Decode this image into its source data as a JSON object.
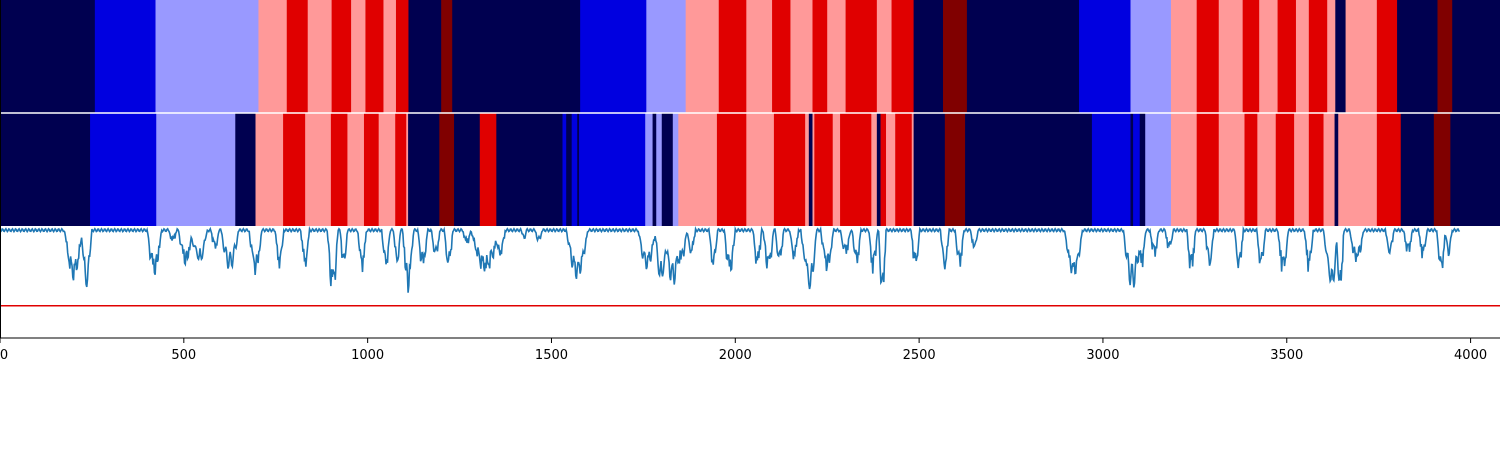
{
  "chart_data": {
    "type": "heatmap",
    "title": "",
    "xlabel": "",
    "ylabel": "",
    "xlim": [
      0,
      4080
    ],
    "xticks": [
      0,
      500,
      1000,
      1500,
      2000,
      2500,
      3000,
      3500,
      4000
    ],
    "xtick_labels": [
      "0",
      "500",
      "1000",
      "1500",
      "2000",
      "2500",
      "3000",
      "3500",
      "4000"
    ],
    "grid": false,
    "legend": "none",
    "palette": [
      "#000050",
      "#0000e0",
      "#9999ff",
      "#ff9999",
      "#e00000",
      "#800000"
    ],
    "segment_rows": [
      {
        "segments": [
          [
            0,
            258,
            0
          ],
          [
            258,
            423,
            1
          ],
          [
            423,
            703,
            2
          ],
          [
            703,
            780,
            3
          ],
          [
            780,
            837,
            4
          ],
          [
            837,
            902,
            3
          ],
          [
            902,
            955,
            4
          ],
          [
            955,
            994,
            3
          ],
          [
            994,
            1043,
            4
          ],
          [
            1043,
            1077,
            3
          ],
          [
            1077,
            1111,
            4
          ],
          [
            1111,
            1200,
            0
          ],
          [
            1200,
            1230,
            5
          ],
          [
            1230,
            1578,
            0
          ],
          [
            1578,
            1758,
            1
          ],
          [
            1758,
            1865,
            2
          ],
          [
            1865,
            1955,
            3
          ],
          [
            1955,
            2030,
            4
          ],
          [
            2030,
            2100,
            3
          ],
          [
            2100,
            2150,
            4
          ],
          [
            2150,
            2210,
            3
          ],
          [
            2210,
            2250,
            4
          ],
          [
            2250,
            2300,
            3
          ],
          [
            2300,
            2385,
            4
          ],
          [
            2385,
            2425,
            3
          ],
          [
            2425,
            2485,
            4
          ],
          [
            2485,
            2565,
            0
          ],
          [
            2565,
            2630,
            5
          ],
          [
            2630,
            2935,
            0
          ],
          [
            2935,
            3075,
            1
          ],
          [
            3075,
            3185,
            2
          ],
          [
            3185,
            3255,
            3
          ],
          [
            3255,
            3315,
            4
          ],
          [
            3315,
            3380,
            3
          ],
          [
            3380,
            3425,
            4
          ],
          [
            3425,
            3475,
            3
          ],
          [
            3475,
            3525,
            4
          ],
          [
            3525,
            3560,
            3
          ],
          [
            3560,
            3610,
            4
          ],
          [
            3610,
            3632,
            3
          ],
          [
            3632,
            3660,
            0
          ],
          [
            3660,
            3745,
            3
          ],
          [
            3745,
            3800,
            4
          ],
          [
            3800,
            3910,
            0
          ],
          [
            3910,
            3950,
            5
          ],
          [
            3950,
            4080,
            0
          ]
        ]
      },
      {
        "segments": [
          [
            0,
            245,
            0
          ],
          [
            245,
            425,
            1
          ],
          [
            425,
            640,
            2
          ],
          [
            640,
            695,
            0
          ],
          [
            695,
            770,
            3
          ],
          [
            770,
            830,
            4
          ],
          [
            830,
            900,
            3
          ],
          [
            900,
            945,
            4
          ],
          [
            945,
            990,
            3
          ],
          [
            990,
            1030,
            4
          ],
          [
            1030,
            1075,
            3
          ],
          [
            1075,
            1105,
            4
          ],
          [
            1105,
            1110,
            3
          ],
          [
            1110,
            1195,
            0
          ],
          [
            1195,
            1235,
            5
          ],
          [
            1235,
            1305,
            0
          ],
          [
            1305,
            1350,
            4
          ],
          [
            1350,
            1530,
            0
          ],
          [
            1530,
            1540,
            1
          ],
          [
            1540,
            1555,
            0
          ],
          [
            1555,
            1570,
            1
          ],
          [
            1570,
            1575,
            0
          ],
          [
            1575,
            1755,
            1
          ],
          [
            1755,
            1775,
            2
          ],
          [
            1775,
            1785,
            0
          ],
          [
            1785,
            1800,
            2
          ],
          [
            1800,
            1830,
            0
          ],
          [
            1830,
            1845,
            2
          ],
          [
            1845,
            1950,
            3
          ],
          [
            1950,
            2030,
            4
          ],
          [
            2030,
            2105,
            3
          ],
          [
            2105,
            2190,
            4
          ],
          [
            2190,
            2200,
            3
          ],
          [
            2200,
            2210,
            0
          ],
          [
            2210,
            2215,
            3
          ],
          [
            2215,
            2265,
            4
          ],
          [
            2265,
            2285,
            3
          ],
          [
            2285,
            2370,
            4
          ],
          [
            2370,
            2385,
            3
          ],
          [
            2385,
            2395,
            0
          ],
          [
            2395,
            2410,
            4
          ],
          [
            2410,
            2435,
            3
          ],
          [
            2435,
            2480,
            4
          ],
          [
            2480,
            2485,
            3
          ],
          [
            2485,
            2570,
            0
          ],
          [
            2570,
            2625,
            5
          ],
          [
            2625,
            2970,
            0
          ],
          [
            2970,
            3075,
            1
          ],
          [
            3075,
            3082,
            0
          ],
          [
            3082,
            3100,
            1
          ],
          [
            3100,
            3115,
            0
          ],
          [
            3115,
            3185,
            2
          ],
          [
            3185,
            3255,
            3
          ],
          [
            3255,
            3315,
            4
          ],
          [
            3315,
            3385,
            3
          ],
          [
            3385,
            3420,
            4
          ],
          [
            3420,
            3470,
            3
          ],
          [
            3470,
            3520,
            4
          ],
          [
            3520,
            3560,
            3
          ],
          [
            3560,
            3600,
            4
          ],
          [
            3600,
            3630,
            3
          ],
          [
            3630,
            3640,
            0
          ],
          [
            3640,
            3745,
            3
          ],
          [
            3745,
            3810,
            4
          ],
          [
            3810,
            3900,
            0
          ],
          [
            3900,
            3945,
            5
          ],
          [
            3945,
            4080,
            0
          ]
        ]
      }
    ],
    "signal": {
      "ylim": [
        -0.78,
        0.02
      ],
      "threshold": -0.55,
      "threshold_color": "#e00000",
      "line_color": "#1f77b4",
      "dips": [
        [
          200,
          25,
          0.4,
          6
        ],
        [
          235,
          15,
          0.42,
          4
        ],
        [
          420,
          20,
          0.36,
          3
        ],
        [
          470,
          12,
          0.1,
          2
        ],
        [
          505,
          20,
          0.28,
          3
        ],
        [
          540,
          25,
          0.26,
          4
        ],
        [
          585,
          12,
          0.16,
          2
        ],
        [
          625,
          25,
          0.3,
          5
        ],
        [
          695,
          18,
          0.34,
          3
        ],
        [
          760,
          12,
          0.3,
          2
        ],
        [
          830,
          12,
          0.3,
          2
        ],
        [
          905,
          15,
          0.5,
          3
        ],
        [
          935,
          10,
          0.3,
          2
        ],
        [
          985,
          12,
          0.32,
          2
        ],
        [
          1050,
          12,
          0.3,
          2
        ],
        [
          1080,
          10,
          0.28,
          2
        ],
        [
          1110,
          15,
          0.48,
          3
        ],
        [
          1150,
          14,
          0.3,
          3
        ],
        [
          1185,
          12,
          0.22,
          2
        ],
        [
          1220,
          12,
          0.3,
          2
        ],
        [
          1270,
          12,
          0.12,
          2
        ],
        [
          1320,
          40,
          0.34,
          6
        ],
        [
          1360,
          15,
          0.22,
          2
        ],
        [
          1425,
          8,
          0.08,
          1
        ],
        [
          1465,
          10,
          0.1,
          1
        ],
        [
          1570,
          30,
          0.4,
          5
        ],
        [
          1760,
          25,
          0.32,
          5
        ],
        [
          1800,
          20,
          0.4,
          4
        ],
        [
          1830,
          25,
          0.44,
          5
        ],
        [
          1850,
          20,
          0.28,
          3
        ],
        [
          1880,
          12,
          0.2,
          2
        ],
        [
          1940,
          12,
          0.3,
          2
        ],
        [
          1985,
          15,
          0.36,
          3
        ],
        [
          2060,
          12,
          0.3,
          2
        ],
        [
          2090,
          15,
          0.32,
          3
        ],
        [
          2120,
          12,
          0.26,
          2
        ],
        [
          2160,
          12,
          0.24,
          2
        ],
        [
          2200,
          22,
          0.48,
          4
        ],
        [
          2250,
          18,
          0.32,
          3
        ],
        [
          2300,
          15,
          0.2,
          2
        ],
        [
          2330,
          12,
          0.28,
          2
        ],
        [
          2375,
          12,
          0.34,
          2
        ],
        [
          2400,
          10,
          0.54,
          2
        ],
        [
          2490,
          12,
          0.3,
          2
        ],
        [
          2570,
          12,
          0.32,
          2
        ],
        [
          2610,
          12,
          0.3,
          2
        ],
        [
          2650,
          10,
          0.18,
          1
        ],
        [
          2920,
          25,
          0.4,
          5
        ],
        [
          3080,
          25,
          0.44,
          5
        ],
        [
          3105,
          12,
          0.3,
          2
        ],
        [
          3140,
          12,
          0.22,
          2
        ],
        [
          3180,
          12,
          0.16,
          2
        ],
        [
          3240,
          12,
          0.34,
          2
        ],
        [
          3290,
          12,
          0.3,
          2
        ],
        [
          3370,
          12,
          0.32,
          2
        ],
        [
          3430,
          12,
          0.3,
          2
        ],
        [
          3490,
          15,
          0.34,
          2
        ],
        [
          3560,
          12,
          0.32,
          2
        ],
        [
          3620,
          20,
          0.46,
          4
        ],
        [
          3645,
          10,
          0.52,
          2
        ],
        [
          3690,
          20,
          0.26,
          3
        ],
        [
          3780,
          12,
          0.2,
          2
        ],
        [
          3830,
          12,
          0.2,
          2
        ],
        [
          3870,
          12,
          0.22,
          2
        ],
        [
          3920,
          12,
          0.34,
          2
        ],
        [
          3940,
          10,
          0.2,
          1
        ]
      ]
    }
  }
}
